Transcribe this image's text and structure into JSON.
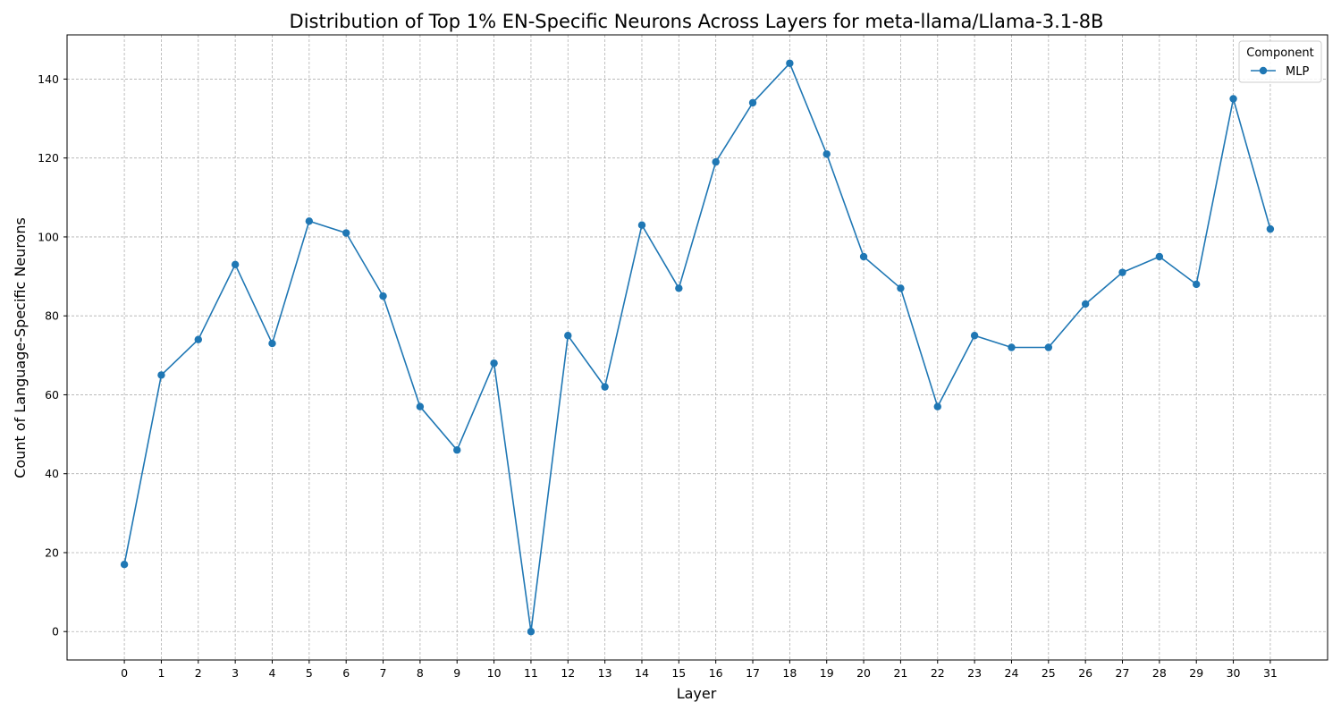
{
  "chart_data": {
    "type": "line",
    "title": "Distribution of Top 1% EN-Specific Neurons Across Layers for meta-llama/Llama-3.1-8B",
    "xlabel": "Layer",
    "ylabel": "Count of Language-Specific Neurons",
    "x": [
      0,
      1,
      2,
      3,
      4,
      5,
      6,
      7,
      8,
      9,
      10,
      11,
      12,
      13,
      14,
      15,
      16,
      17,
      18,
      19,
      20,
      21,
      22,
      23,
      24,
      25,
      26,
      27,
      28,
      29,
      30,
      31
    ],
    "series": [
      {
        "name": "MLP",
        "color": "#1f77b4",
        "values": [
          17,
          65,
          74,
          93,
          73,
          104,
          101,
          85,
          57,
          46,
          68,
          0,
          75,
          62,
          103,
          87,
          119,
          134,
          144,
          121,
          95,
          87,
          57,
          75,
          72,
          72,
          83,
          91,
          95,
          88,
          135,
          102
        ]
      }
    ],
    "xlim": [
      -1.55,
      32.55
    ],
    "ylim": [
      -7.2,
      151.2
    ],
    "yticks": [
      0,
      20,
      40,
      60,
      80,
      100,
      120,
      140
    ],
    "grid": true,
    "legend": {
      "title": "Component",
      "placement": "top-right"
    }
  }
}
